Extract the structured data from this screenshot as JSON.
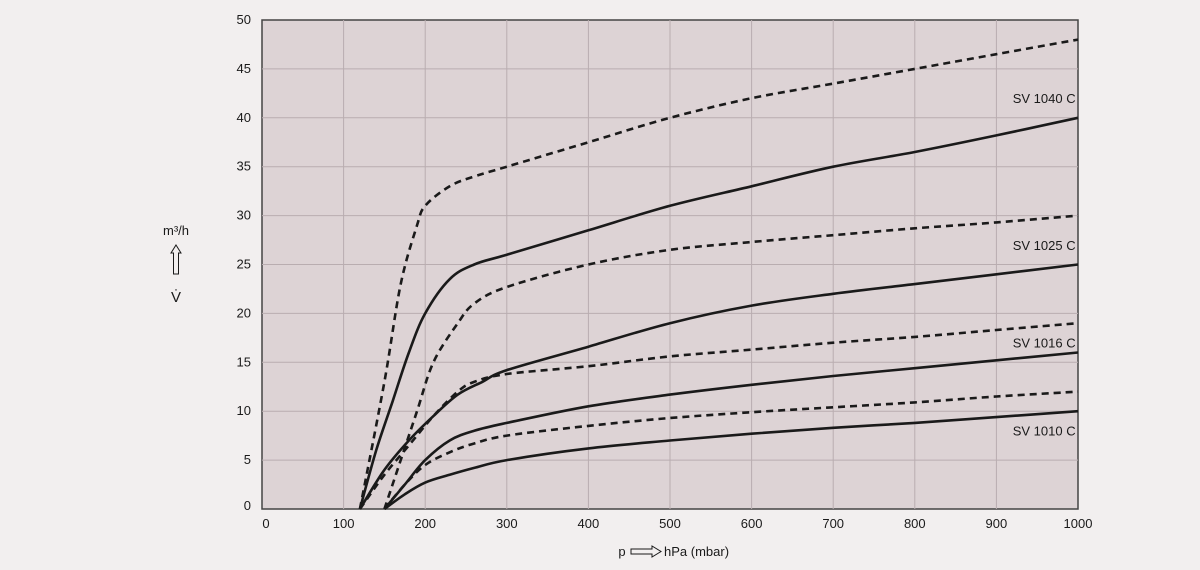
{
  "chart_data": {
    "type": "line",
    "xlim": [
      0,
      1000
    ],
    "ylim": [
      0,
      50
    ],
    "x_ticks": [
      "0",
      "100",
      "200",
      "300",
      "400",
      "500",
      "600",
      "700",
      "800",
      "900",
      "1000"
    ],
    "y_ticks": [
      "0",
      "5",
      "10",
      "15",
      "20",
      "25",
      "30",
      "35",
      "40",
      "45",
      "50"
    ],
    "grid": true,
    "ylabel_unit": "m³/h",
    "ylabel_symbol": "V̇",
    "xlabel_prefix": "p",
    "xlabel_unit": "hPa (mbar)",
    "colors": {
      "plot_bg": "#ddd3d5",
      "grid": "#b9adb0",
      "line": "#1a1a1a",
      "page_bg": "#f2efef"
    },
    "series": [
      {
        "name": "SV 1040 C",
        "style": "dashed",
        "x": [
          120,
          150,
          170,
          190,
          200,
          230,
          260,
          300,
          400,
          500,
          600,
          700,
          800,
          900,
          1000
        ],
        "y": [
          0,
          13,
          23,
          29,
          31,
          33,
          34,
          35,
          37.5,
          40,
          42,
          43.5,
          45,
          46.5,
          48
        ]
      },
      {
        "name": "SV 1040 C",
        "style": "solid",
        "x": [
          120,
          140,
          160,
          180,
          200,
          230,
          260,
          300,
          400,
          500,
          600,
          700,
          800,
          900,
          1000
        ],
        "y": [
          0,
          6,
          11,
          16,
          20,
          23.5,
          25,
          26,
          28.5,
          31,
          33,
          35,
          36.5,
          38.2,
          40
        ]
      },
      {
        "name": "SV 1025 C",
        "style": "dashed",
        "x": [
          150,
          170,
          190,
          210,
          240,
          260,
          300,
          400,
          500,
          600,
          700,
          800,
          900,
          1000
        ],
        "y": [
          0,
          5,
          10,
          15,
          19,
          21,
          22.7,
          25,
          26.5,
          27.3,
          28,
          28.7,
          29.3,
          30
        ]
      },
      {
        "name": "SV 1025 C",
        "style": "solid",
        "x": [
          120,
          150,
          180,
          210,
          240,
          270,
          300,
          400,
          500,
          600,
          700,
          800,
          900,
          1000
        ],
        "y": [
          0,
          4,
          7,
          9.5,
          11.7,
          13,
          14.2,
          16.6,
          19,
          20.8,
          22,
          23,
          24,
          25
        ]
      },
      {
        "name": "SV 1016 C",
        "style": "dashed",
        "x": [
          120,
          150,
          180,
          210,
          240,
          260,
          300,
          400,
          500,
          600,
          700,
          800,
          900,
          1000
        ],
        "y": [
          0,
          3.5,
          6.5,
          9.5,
          12,
          13,
          13.8,
          14.6,
          15.6,
          16.3,
          17,
          17.6,
          18.3,
          19
        ]
      },
      {
        "name": "SV 1016 C",
        "style": "solid",
        "x": [
          150,
          175,
          200,
          230,
          260,
          300,
          400,
          500,
          600,
          700,
          800,
          900,
          1000
        ],
        "y": [
          0,
          2.5,
          5,
          7,
          8,
          8.8,
          10.5,
          11.7,
          12.7,
          13.6,
          14.4,
          15.2,
          16
        ]
      },
      {
        "name": "SV 1010 C",
        "style": "dashed",
        "x": [
          150,
          175,
          200,
          230,
          260,
          300,
          400,
          500,
          600,
          700,
          800,
          900,
          1000
        ],
        "y": [
          0,
          2.5,
          4.5,
          5.8,
          6.7,
          7.5,
          8.5,
          9.3,
          9.9,
          10.4,
          10.9,
          11.5,
          12
        ]
      },
      {
        "name": "SV 1010 C",
        "style": "solid",
        "x": [
          150,
          175,
          200,
          230,
          260,
          300,
          400,
          500,
          600,
          700,
          800,
          900,
          1000
        ],
        "y": [
          0,
          1.5,
          2.7,
          3.5,
          4.2,
          5,
          6.2,
          7,
          7.7,
          8.3,
          8.8,
          9.4,
          10
        ]
      }
    ],
    "series_labels": [
      {
        "text": "SV 1040 C",
        "x": 920,
        "y": 41.5
      },
      {
        "text": "SV 1025 C",
        "x": 920,
        "y": 26.5
      },
      {
        "text": "SV 1016 C",
        "x": 920,
        "y": 16.5
      },
      {
        "text": "SV 1010 C",
        "x": 920,
        "y": 7.5
      }
    ]
  }
}
